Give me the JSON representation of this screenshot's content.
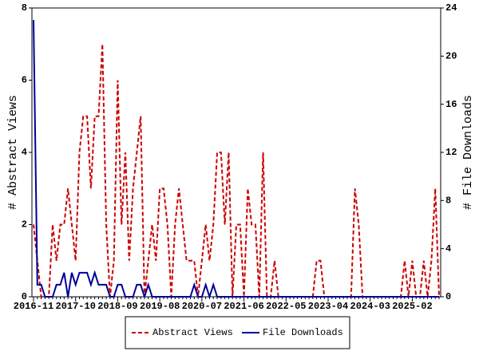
{
  "chart_data": {
    "type": "line",
    "y_label": "# Abstract Views",
    "y2_label": "# File Downloads",
    "categories": [
      "2016-11",
      null,
      null,
      null,
      null,
      null,
      null,
      null,
      null,
      null,
      null,
      "2017-10",
      null,
      null,
      null,
      null,
      null,
      null,
      null,
      null,
      null,
      null,
      "2018-09",
      null,
      null,
      null,
      null,
      null,
      null,
      null,
      null,
      null,
      null,
      "2019-08",
      null,
      null,
      null,
      null,
      null,
      null,
      null,
      null,
      null,
      null,
      "2020-07",
      null,
      null,
      null,
      null,
      null,
      null,
      null,
      null,
      null,
      null,
      "2021-06",
      null,
      null,
      null,
      null,
      null,
      null,
      null,
      null,
      null,
      null,
      "2022-05",
      null,
      null,
      null,
      null,
      null,
      null,
      null,
      null,
      null,
      null,
      "2023-04",
      null,
      null,
      null,
      null,
      null,
      null,
      null,
      null,
      null,
      null,
      "2024-03",
      null,
      null,
      null,
      null,
      null,
      null,
      null,
      null,
      null,
      null,
      "2025-02",
      null,
      null,
      null,
      null,
      null,
      null,
      null
    ],
    "series": [
      {
        "name": "Abstract Views",
        "color": "#cc0000",
        "line_style": "dashed",
        "values": [
          2,
          1,
          0,
          0,
          0,
          2,
          1,
          2,
          2,
          3,
          2,
          1,
          4,
          5,
          5,
          3,
          5,
          5,
          7,
          2,
          0,
          1,
          6,
          2,
          4,
          1,
          3,
          4,
          5,
          0,
          1,
          2,
          1,
          3,
          3,
          2,
          0,
          2,
          3,
          2,
          1,
          1,
          1,
          0,
          1,
          2,
          1,
          2,
          4,
          4,
          2,
          4,
          0,
          2,
          2,
          0,
          3,
          2,
          2,
          0,
          4,
          0,
          0,
          1,
          0,
          0,
          0,
          0,
          0,
          0,
          0,
          0,
          0,
          0,
          1,
          1,
          0,
          0,
          0,
          0,
          0,
          0,
          0,
          0,
          3,
          2,
          0,
          0,
          0,
          0,
          0,
          0,
          0,
          0,
          0,
          0,
          0,
          1,
          0,
          1,
          0,
          0,
          1,
          0,
          1,
          3,
          0
        ]
      },
      {
        "name": "File Downloads",
        "color": "#000099",
        "line_style": "solid",
        "axis": "y2",
        "values": [
          23,
          1,
          1,
          0,
          0,
          0,
          1,
          1,
          2,
          0,
          2,
          1,
          2,
          2,
          2,
          1,
          2,
          1,
          1,
          1,
          0,
          0,
          1,
          1,
          0,
          0,
          0,
          1,
          1,
          0,
          1,
          0,
          0,
          0,
          0,
          0,
          0,
          0,
          0,
          0,
          0,
          0,
          1,
          0,
          0,
          1,
          0,
          1,
          0,
          0,
          0,
          0,
          0,
          0,
          0,
          0,
          0,
          0,
          0,
          0,
          0,
          0,
          0,
          0,
          0,
          0,
          0,
          0,
          0,
          0,
          0,
          0,
          0,
          0,
          0,
          0,
          0,
          0,
          0,
          0,
          0,
          0,
          0,
          0,
          0,
          0,
          0,
          0,
          0,
          0,
          0,
          0,
          0,
          0,
          0,
          0,
          0,
          0,
          0,
          0,
          0,
          0,
          0,
          0,
          0,
          0,
          0
        ]
      }
    ],
    "ylim": [
      0,
      8
    ],
    "yticks": [
      0,
      2,
      4,
      6,
      8
    ],
    "y2lim": [
      0,
      24
    ],
    "y2ticks": [
      0,
      4,
      8,
      12,
      16,
      20,
      24
    ],
    "legend": "bottom"
  }
}
